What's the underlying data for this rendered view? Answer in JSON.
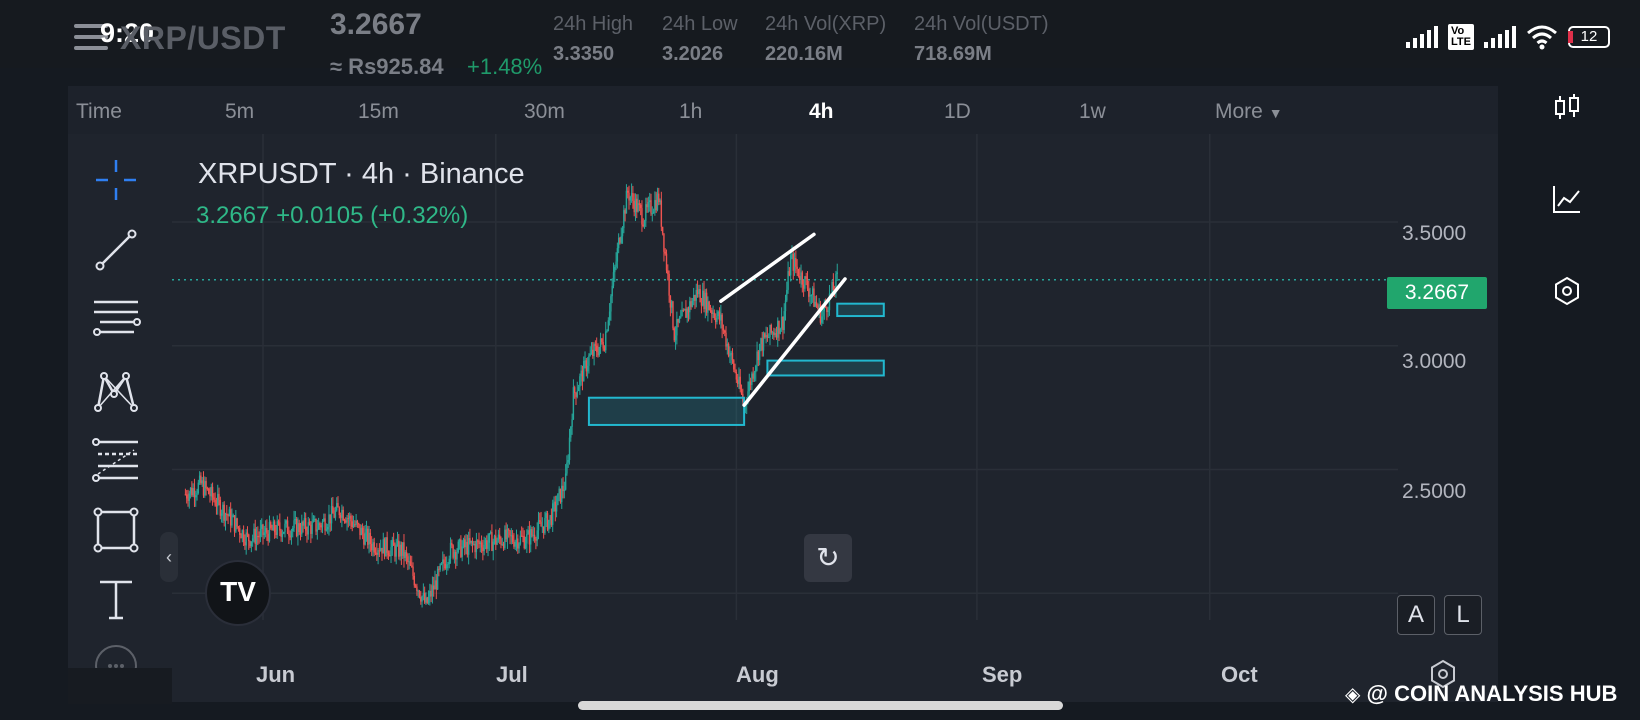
{
  "status_bar": {
    "time": "9:20",
    "battery": "12"
  },
  "ticker": {
    "pair": "XRP/USDT",
    "last_price": "3.2667",
    "approx_local": "≈ Rs925.84",
    "change_pct": "+1.48%",
    "stats": [
      {
        "label": "24h High",
        "value": "3.3350"
      },
      {
        "label": "24h Low",
        "value": "3.2026"
      },
      {
        "label": "24h Vol(XRP)",
        "value": "220.16M"
      },
      {
        "label": "24h Vol(USDT)",
        "value": "718.69M"
      }
    ]
  },
  "timeframes": {
    "items": [
      "Time",
      "5m",
      "15m",
      "30m",
      "1h",
      "4h",
      "1D",
      "1w",
      "More"
    ],
    "active": "4h"
  },
  "chart_header": {
    "title": "XRPUSDT · 4h · Binance",
    "quote": "3.2667  +0.0105 (+0.32%)"
  },
  "chart_data": {
    "type": "candlestick",
    "symbol": "XRPUSDT",
    "interval": "4h",
    "exchange": "Binance",
    "last_price": 3.2667,
    "y_ticks": [
      "3.5000",
      "3.0000",
      "2.5000"
    ],
    "ylim": [
      2.0,
      3.75
    ],
    "x_ticks": [
      "Jun",
      "Jul",
      "Aug",
      "Sep",
      "Oct"
    ],
    "price_line": 3.2667,
    "close_trend": [
      {
        "date": "2025-05-22",
        "price": 2.4
      },
      {
        "date": "2025-05-24",
        "price": 2.44
      },
      {
        "date": "2025-05-26",
        "price": 2.37
      },
      {
        "date": "2025-05-30",
        "price": 2.22
      },
      {
        "date": "2025-06-03",
        "price": 2.26
      },
      {
        "date": "2025-06-08",
        "price": 2.27
      },
      {
        "date": "2025-06-11",
        "price": 2.34
      },
      {
        "date": "2025-06-15",
        "price": 2.2
      },
      {
        "date": "2025-06-19",
        "price": 2.17
      },
      {
        "date": "2025-06-22",
        "price": 1.95
      },
      {
        "date": "2025-06-25",
        "price": 2.17
      },
      {
        "date": "2025-06-29",
        "price": 2.2
      },
      {
        "date": "2025-07-02",
        "price": 2.22
      },
      {
        "date": "2025-07-05",
        "price": 2.22
      },
      {
        "date": "2025-07-08",
        "price": 2.3
      },
      {
        "date": "2025-07-10",
        "price": 2.45
      },
      {
        "date": "2025-07-11",
        "price": 2.8
      },
      {
        "date": "2025-07-13",
        "price": 2.95
      },
      {
        "date": "2025-07-15",
        "price": 3.02
      },
      {
        "date": "2025-07-17",
        "price": 3.45
      },
      {
        "date": "2025-07-18",
        "price": 3.62
      },
      {
        "date": "2025-07-20",
        "price": 3.52
      },
      {
        "date": "2025-07-22",
        "price": 3.6
      },
      {
        "date": "2025-07-24",
        "price": 3.05
      },
      {
        "date": "2025-07-27",
        "price": 3.22
      },
      {
        "date": "2025-07-30",
        "price": 3.1
      },
      {
        "date": "2025-08-02",
        "price": 2.76
      },
      {
        "date": "2025-08-04",
        "price": 3.0
      },
      {
        "date": "2025-08-07",
        "price": 3.1
      },
      {
        "date": "2025-08-08",
        "price": 3.35
      },
      {
        "date": "2025-08-10",
        "price": 3.25
      },
      {
        "date": "2025-08-12",
        "price": 3.12
      },
      {
        "date": "2025-08-14",
        "price": 3.2667
      }
    ],
    "channel_lines": [
      {
        "from": {
          "date": "2025-07-30",
          "price": 3.18
        },
        "to": {
          "date": "2025-08-11",
          "price": 3.45
        }
      },
      {
        "from": {
          "date": "2025-08-02",
          "price": 2.76
        },
        "to": {
          "date": "2025-08-15",
          "price": 3.27
        }
      }
    ],
    "zones": [
      {
        "from": "2025-07-13",
        "to": "2025-08-02",
        "low": 2.68,
        "high": 2.79
      },
      {
        "from": "2025-08-05",
        "to": "2025-08-20",
        "low": 2.88,
        "high": 2.94
      },
      {
        "from": "2025-08-14",
        "to": "2025-08-20",
        "low": 3.12,
        "high": 3.17
      }
    ],
    "colors": {
      "up": "#26a69a",
      "down": "#ef5350",
      "zone": "#22b8cf",
      "channel": "#ffffff",
      "price_tag": "#21a66d"
    }
  },
  "chart_controls": {
    "logo": "TV",
    "auto_scale": "A",
    "log_scale": "L",
    "collapse": "‹",
    "reset": "↻"
  },
  "toolbar_icons": [
    "crosshair-icon",
    "trend-line-icon",
    "horizontal-lines-icon",
    "pattern-icon",
    "fib-icon",
    "rectangle-icon",
    "text-icon",
    "more-tools-icon"
  ],
  "sidebar_icons": [
    "candles-icon",
    "indicators-icon",
    "settings-icon"
  ],
  "watermark": "@ COIN ANALYSIS HUB"
}
